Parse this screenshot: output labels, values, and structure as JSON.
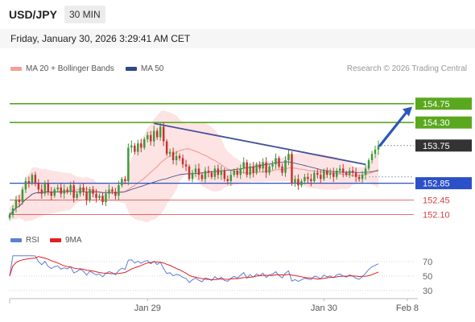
{
  "header": {
    "symbol": "USD/JPY",
    "timeframe": "30 MIN",
    "datetime": "Friday, January 30, 2026 3:29:41 AM CET"
  },
  "legend": {
    "ma20_label": "MA 20 + Bollinger Bands",
    "ma50_label": "MA 50",
    "credit": "Research © 2026 Trading Central"
  },
  "colors": {
    "ma20": "#f4a09a",
    "ma50": "#2f4a87",
    "bollinger_fill": "#fde3e3",
    "candle_up": "#3b9a3b",
    "candle_down": "#c8312f",
    "target_line": "#5aa81e",
    "pivot_line": "#2b50c8",
    "support_line": "#d94040",
    "trendline": "#44519a",
    "arrow": "#2b58b8",
    "current_price_bg": "#333333",
    "rsi": "#5b7fd6",
    "rsi_ma": "#e02020"
  },
  "chart_data": [
    {
      "type": "candlestick",
      "series": [
        {
          "name": "MA 20 + Bollinger Bands"
        },
        {
          "name": "MA 50"
        }
      ],
      "x_ticks": [
        "Jan 29",
        "Jan 30",
        "Feb 8"
      ],
      "ylim": [
        151.9,
        155.4
      ],
      "grid": false,
      "legend": "top-left",
      "levels": [
        {
          "label": "154.75",
          "value": 154.75,
          "kind": "target"
        },
        {
          "label": "154.30",
          "value": 154.3,
          "kind": "target"
        },
        {
          "label": "153.75",
          "value": 153.75,
          "kind": "current"
        },
        {
          "label": "152.85",
          "value": 152.85,
          "kind": "pivot"
        },
        {
          "label": "152.45",
          "value": 152.45,
          "kind": "support"
        },
        {
          "label": "152.10",
          "value": 152.1,
          "kind": "support"
        }
      ],
      "closes": [
        152.1,
        152.25,
        152.45,
        152.4,
        152.7,
        152.9,
        152.85,
        153.05,
        152.85,
        152.7,
        152.6,
        152.85,
        152.65,
        152.55,
        152.7,
        152.75,
        152.6,
        152.7,
        152.65,
        152.8,
        152.5,
        152.6,
        152.75,
        152.65,
        152.45,
        152.7,
        152.6,
        152.5,
        152.55,
        152.4,
        152.6,
        152.7,
        152.65,
        152.55,
        152.8,
        152.95,
        152.9,
        153.7,
        153.75,
        153.6,
        153.8,
        153.7,
        153.9,
        154.0,
        153.85,
        154.1,
        153.95,
        154.2,
        153.85,
        153.55,
        153.6,
        153.4,
        153.5,
        153.45,
        153.3,
        153.25,
        152.95,
        153.1,
        153.2,
        153.05,
        152.95,
        153.15,
        153.1,
        153.0,
        153.2,
        153.05,
        153.15,
        152.95,
        152.9,
        153.05,
        153.15,
        153.05,
        153.2,
        153.35,
        153.05,
        153.25,
        153.1,
        153.3,
        153.2,
        153.35,
        153.1,
        153.25,
        153.3,
        153.45,
        153.25,
        153.1,
        153.4,
        153.55,
        152.85,
        152.95,
        152.8,
        152.9,
        153.0,
        152.95,
        152.9,
        153.1,
        153.05,
        152.95,
        153.15,
        153.05,
        153.1,
        153.0,
        153.15,
        153.2,
        153.1,
        153.05,
        153.15,
        153.1,
        153.0,
        152.95,
        153.05,
        153.2,
        153.4,
        153.55,
        153.65,
        153.75
      ],
      "ma20_ma50_source": "computed from closes"
    },
    {
      "type": "line",
      "series": [
        {
          "name": "RSI"
        },
        {
          "name": "9MA"
        }
      ],
      "x_ticks": [
        "Jan 29",
        "Jan 30",
        "Feb 8"
      ],
      "y_ticks": [
        70,
        50,
        30
      ],
      "ylim": [
        22,
        80
      ],
      "legend": "top-left",
      "rsi_source": "computed from closes"
    }
  ],
  "labels": {
    "rsi_label": "RSI",
    "rsi_ma_label": "9MA",
    "x_ticks": [
      "Jan 29",
      "Jan 30",
      "Feb 8"
    ],
    "rsi_ticks": [
      "70",
      "50",
      "30"
    ]
  }
}
